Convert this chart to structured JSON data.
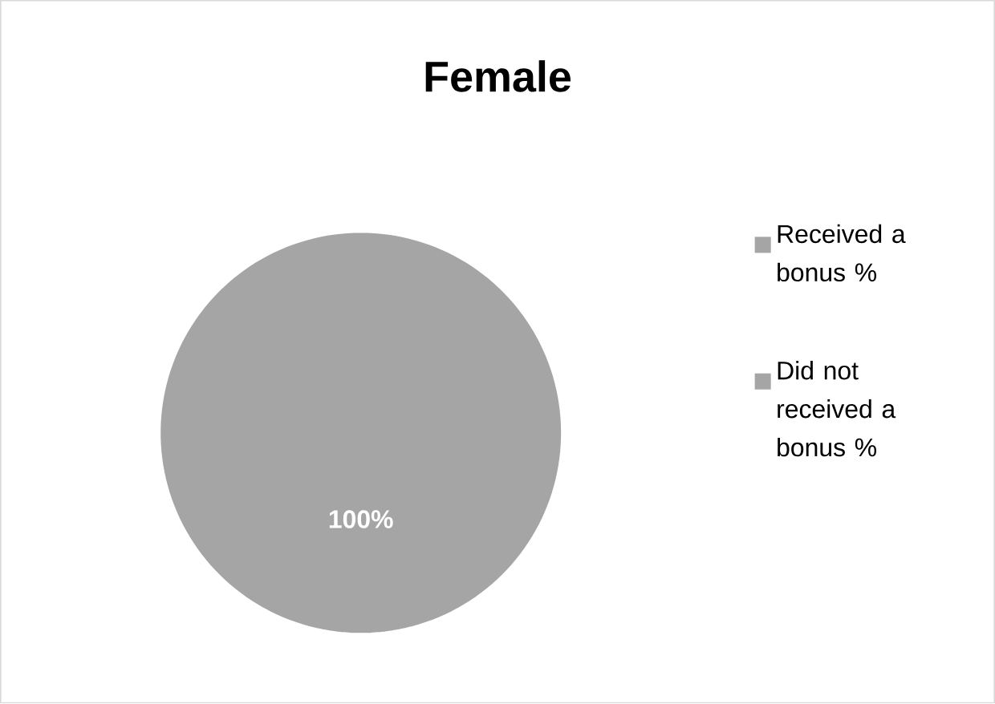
{
  "chart_data": {
    "type": "pie",
    "title": "Female",
    "categories": [
      "Received a bonus %",
      "Did not received a bonus %"
    ],
    "values": [
      100,
      0
    ],
    "colors": [
      "#a5a5a5",
      "#a5a5a5"
    ],
    "value_labels": [
      "100%",
      null
    ],
    "legend": "right"
  }
}
